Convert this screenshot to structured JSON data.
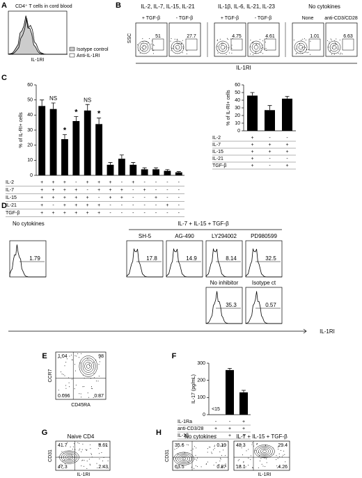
{
  "panels": {
    "a": {
      "letter": "A",
      "title": "CD4⁺ T cells in cord blood",
      "legend": [
        "Isotype control",
        "Anti-IL-1RI"
      ],
      "xlabel": "IL-1RI"
    },
    "b": {
      "letter": "B",
      "ylabel": "SSC",
      "xlabel": "IL-1RI",
      "groups": [
        {
          "title": "IL-2, IL-7, IL-15, IL-21",
          "plots": [
            {
              "label": "+ TGF-β",
              "value": "51"
            },
            {
              "label": "- TGF-β",
              "value": "27.7"
            }
          ]
        },
        {
          "title": "IL-1β, IL-6, IL-21, IL-23",
          "plots": [
            {
              "label": "+ TGF-β",
              "value": "4.75"
            },
            {
              "label": "- TGF-β",
              "value": "4.61"
            }
          ]
        },
        {
          "title": "No cytokines",
          "plots": [
            {
              "label": "None",
              "value": "1.01"
            },
            {
              "label": "anti-CD3/CD28",
              "value": "6.63"
            }
          ]
        }
      ]
    },
    "c": {
      "letter": "C"
    },
    "d": {
      "letter": "D",
      "left_title": "No cytokines",
      "group_title": "IL-7 + IL-15 + TGF-β",
      "xlabel": "IL-1RI",
      "left_value": "1.79",
      "top": [
        {
          "label": "SH-5",
          "value": "17.8"
        },
        {
          "label": "AG-490",
          "value": "14.9"
        },
        {
          "label": "LY294002",
          "value": "8.14"
        },
        {
          "label": "PD980599",
          "value": "32.5"
        }
      ],
      "bottom": [
        {
          "label": "No inhibitor",
          "value": "35.3"
        },
        {
          "label": "Isotype ct",
          "value": "0.57"
        }
      ]
    },
    "e": {
      "letter": "E",
      "ylabel": "CCR7",
      "xlabel": "CD45RA",
      "quadrants": [
        "1.04",
        "98",
        "0.096",
        "0.87"
      ]
    },
    "f": {
      "letter": "F"
    },
    "g": {
      "letter": "G",
      "title": "Naive CD4",
      "ylabel": "CD31",
      "xlabel": "IL-1RI",
      "quadrants": [
        "41.7",
        "8.61",
        "47.3",
        "2.43"
      ]
    },
    "h": {
      "letter": "H",
      "ylabel": "CD31",
      "xlabel": "IL-1RI",
      "plots": [
        {
          "title": "No cytokines",
          "quadrants": [
            "35.6",
            "0.19",
            "63.5",
            "0.87"
          ]
        },
        {
          "title": "IL-7 + IL-15 + TGF-β",
          "quadrants": [
            "48.3",
            "29.4",
            "18.1",
            "4.26"
          ]
        }
      ]
    }
  },
  "chart_data": [
    {
      "type": "bar",
      "ylabel": "% of IL-RI+ cells",
      "color": "#000000",
      "values": [
        46,
        44,
        24,
        36,
        43,
        34,
        7,
        11,
        7,
        4,
        4,
        3,
        2
      ],
      "errors": [
        4,
        4,
        3,
        3,
        4,
        4,
        1.5,
        2.5,
        1.5,
        1,
        1,
        0.8,
        0.5
      ],
      "markers": [
        null,
        "NS",
        "*",
        "*",
        "NS",
        "*",
        null,
        null,
        null,
        null,
        null,
        null,
        null
      ],
      "ylim": [
        0,
        60
      ],
      "yticks": [
        0,
        10,
        20,
        30,
        40,
        50,
        60
      ],
      "rows": [
        {
          "name": "IL-2",
          "signs": [
            "+",
            "+",
            "+",
            "-",
            "+",
            "+",
            "+",
            "-",
            "+",
            "-",
            "-",
            "-",
            "-"
          ]
        },
        {
          "name": "IL-7",
          "signs": [
            "+",
            "+",
            "+",
            "+",
            "-",
            "+",
            "+",
            "+",
            "-",
            "+",
            "-",
            "-",
            "-"
          ]
        },
        {
          "name": "IL-15",
          "signs": [
            "+",
            "+",
            "+",
            "+",
            "+",
            "-",
            "+",
            "+",
            "-",
            "-",
            "+",
            "-",
            "-"
          ]
        },
        {
          "name": "IL-21",
          "signs": [
            "+",
            "-",
            "+",
            "+",
            "+",
            "+",
            "-",
            "-",
            "-",
            "-",
            "-",
            "+",
            "-"
          ]
        },
        {
          "name": "TGF-β",
          "signs": [
            "+",
            "+",
            "+",
            "+",
            "+",
            "+",
            "-",
            "-",
            "-",
            "-",
            "-",
            "-",
            "-"
          ]
        }
      ]
    },
    {
      "type": "bar",
      "ylabel": "% of IL-RI+ cells",
      "color": "#000000",
      "values": [
        46,
        27,
        42
      ],
      "errors": [
        4,
        6,
        3
      ],
      "ylim": [
        0,
        60
      ],
      "yticks": [
        0,
        10,
        20,
        30,
        40,
        50,
        60
      ],
      "rows": [
        {
          "name": "IL-2",
          "signs": [
            "+",
            "-",
            "-"
          ]
        },
        {
          "name": "IL-7",
          "signs": [
            "+",
            "+",
            "+"
          ]
        },
        {
          "name": "IL-15",
          "signs": [
            "+",
            "+",
            "+"
          ]
        },
        {
          "name": "IL-21",
          "signs": [
            "+",
            "-",
            "-"
          ]
        },
        {
          "name": "TGF-β",
          "signs": [
            "+",
            "-",
            "+"
          ]
        }
      ]
    },
    {
      "type": "bar",
      "ylabel": "IL-17 (pg/mL)",
      "color": "#000000",
      "values": [
        null,
        260,
        130
      ],
      "errors": [
        null,
        10,
        12
      ],
      "annotation": "<15",
      "ylim": [
        0,
        300
      ],
      "yticks": [
        0,
        100,
        200,
        300
      ],
      "rows": [
        {
          "name": "IL-1Ra",
          "signs": [
            "-",
            "-",
            "+"
          ]
        },
        {
          "name": "anti-CD3/28",
          "signs": [
            "+",
            "+",
            "+"
          ]
        },
        {
          "name": "IL-1β",
          "signs": [
            "-",
            "+",
            "+"
          ]
        }
      ]
    }
  ]
}
